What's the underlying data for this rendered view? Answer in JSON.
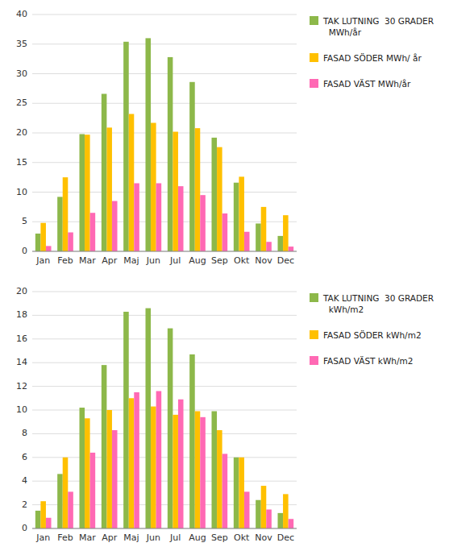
{
  "chart_data": [
    {
      "type": "bar",
      "categories": [
        "Jan",
        "Feb",
        "Mar",
        "Apr",
        "Maj",
        "Jun",
        "Jul",
        "Aug",
        "Sep",
        "Okt",
        "Nov",
        "Dec"
      ],
      "series": [
        {
          "name": "TAK LUTNING  30 GRADER\n  MWh/år",
          "color": "#8DB84A",
          "values": [
            3.0,
            9.2,
            19.8,
            26.6,
            35.4,
            36.0,
            32.8,
            28.6,
            19.2,
            11.6,
            4.7,
            2.6
          ]
        },
        {
          "name": "FASAD SÖDER MWh/ år",
          "color": "#FFC000",
          "values": [
            4.8,
            12.5,
            19.7,
            20.9,
            23.2,
            21.7,
            20.2,
            20.8,
            17.6,
            12.6,
            7.5,
            6.1
          ]
        },
        {
          "name": "FASAD VÄST MWh/år",
          "color": "#FF69B4",
          "values": [
            0.9,
            3.2,
            6.5,
            8.5,
            11.5,
            11.5,
            11.0,
            9.5,
            6.4,
            3.3,
            1.6,
            0.8
          ]
        }
      ],
      "ylim": [
        0,
        40
      ],
      "yticks": [
        0,
        5,
        10,
        15,
        20,
        25,
        30,
        35,
        40
      ],
      "grid": true,
      "legend": "right"
    },
    {
      "type": "bar",
      "categories": [
        "Jan",
        "Feb",
        "Mar",
        "Apr",
        "Maj",
        "Jun",
        "Jul",
        "Aug",
        "Sep",
        "Okt",
        "Nov",
        "Dec"
      ],
      "series": [
        {
          "name": "TAK LUTNING  30 GRADER\n  kWh/m2",
          "color": "#8DB84A",
          "values": [
            1.5,
            4.6,
            10.2,
            13.8,
            18.3,
            18.6,
            16.9,
            14.7,
            9.9,
            6.0,
            2.4,
            1.3
          ]
        },
        {
          "name": "FASAD SÖDER kWh/m2",
          "color": "#FFC000",
          "values": [
            2.3,
            6.0,
            9.3,
            10.0,
            11.0,
            10.3,
            9.6,
            9.9,
            8.3,
            6.0,
            3.6,
            2.9
          ]
        },
        {
          "name": "FASAD VÄST kWh/m2",
          "color": "#FF69B4",
          "values": [
            0.9,
            3.1,
            6.4,
            8.3,
            11.5,
            11.6,
            10.9,
            9.4,
            6.3,
            3.1,
            1.6,
            0.8
          ]
        }
      ],
      "ylim": [
        0,
        20
      ],
      "yticks": [
        0,
        2,
        4,
        6,
        8,
        10,
        12,
        14,
        16,
        18,
        20
      ],
      "grid": true,
      "legend": "right"
    }
  ]
}
